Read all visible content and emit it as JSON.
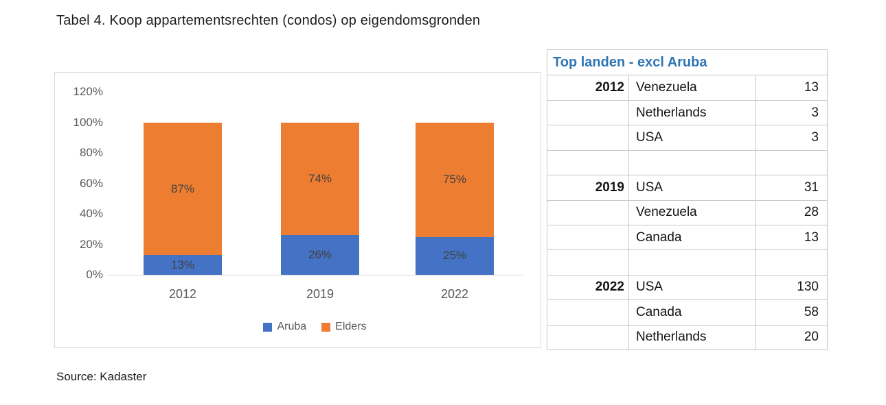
{
  "page": {
    "title": "Tabel 4. Koop appartementsrechten (condos) op eigendomsgronden",
    "source": "Source: Kadaster"
  },
  "chart_data": {
    "type": "bar",
    "stacked": true,
    "title": "",
    "xlabel": "",
    "ylabel": "",
    "categories": [
      "2012",
      "2019",
      "2022"
    ],
    "series": [
      {
        "name": "Aruba",
        "color": "#4472c4",
        "values": [
          13,
          26,
          25
        ]
      },
      {
        "name": "Elders",
        "color": "#ed7d31",
        "values": [
          87,
          74,
          75
        ]
      }
    ],
    "unit": "%",
    "y_ticks": [
      "120%",
      "100%",
      "80%",
      "60%",
      "40%",
      "20%",
      "0%"
    ],
    "ylim": [
      0,
      120
    ],
    "grid": false,
    "legend_position": "bottom",
    "data_labels": true
  },
  "table": {
    "title": "Top landen - excl Aruba",
    "title_color": "#2e75b6",
    "rows": [
      {
        "year": "2012",
        "country": "Venezuela",
        "value": "13"
      },
      {
        "year": "",
        "country": "Netherlands",
        "value": "3"
      },
      {
        "year": "",
        "country": "USA",
        "value": "3"
      },
      {
        "year": "",
        "country": "",
        "value": ""
      },
      {
        "year": "2019",
        "country": "USA",
        "value": "31"
      },
      {
        "year": "",
        "country": "Venezuela",
        "value": "28"
      },
      {
        "year": "",
        "country": "Canada",
        "value": "13"
      },
      {
        "year": "",
        "country": "",
        "value": ""
      },
      {
        "year": "2022",
        "country": "USA",
        "value": "130"
      },
      {
        "year": "",
        "country": "Canada",
        "value": "58"
      },
      {
        "year": "",
        "country": "Netherlands",
        "value": "20"
      }
    ]
  },
  "colors": {
    "aruba_blue": "#4472c4",
    "elders_orange": "#ed7d31",
    "axis_text": "#595959",
    "data_label": "#404040",
    "table_border": "#c6c6c6",
    "chart_border": "#d9d9d9",
    "header_blue": "#2e75b6"
  }
}
